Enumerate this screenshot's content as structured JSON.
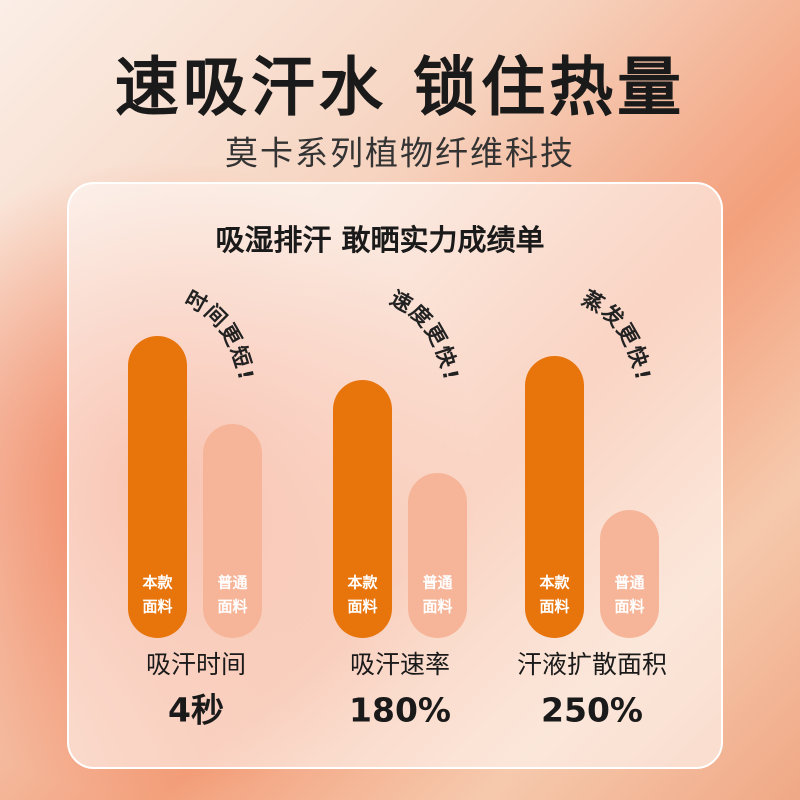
{
  "header": {
    "title": "速吸汗水 锁住热量",
    "subtitle": "莫卡系列植物纤维科技"
  },
  "panel": {
    "heading": "吸湿排汗 敢晒实力成绩单",
    "groups": [
      {
        "slogan": "时间更短!",
        "ours": [
          "本款",
          "面料"
        ],
        "regular": [
          "普通",
          "面料"
        ],
        "label": "吸汗时间",
        "result": "4秒"
      },
      {
        "slogan": "速度更快!",
        "ours": [
          "本款",
          "面料"
        ],
        "regular": [
          "普通",
          "面料"
        ],
        "label": "吸汗速率",
        "result": "180%"
      },
      {
        "slogan": "蒸发更快!",
        "ours": [
          "本款",
          "面料"
        ],
        "regular": [
          "普通",
          "面料"
        ],
        "label": "汗液扩散面积",
        "result": "250%"
      }
    ]
  }
}
